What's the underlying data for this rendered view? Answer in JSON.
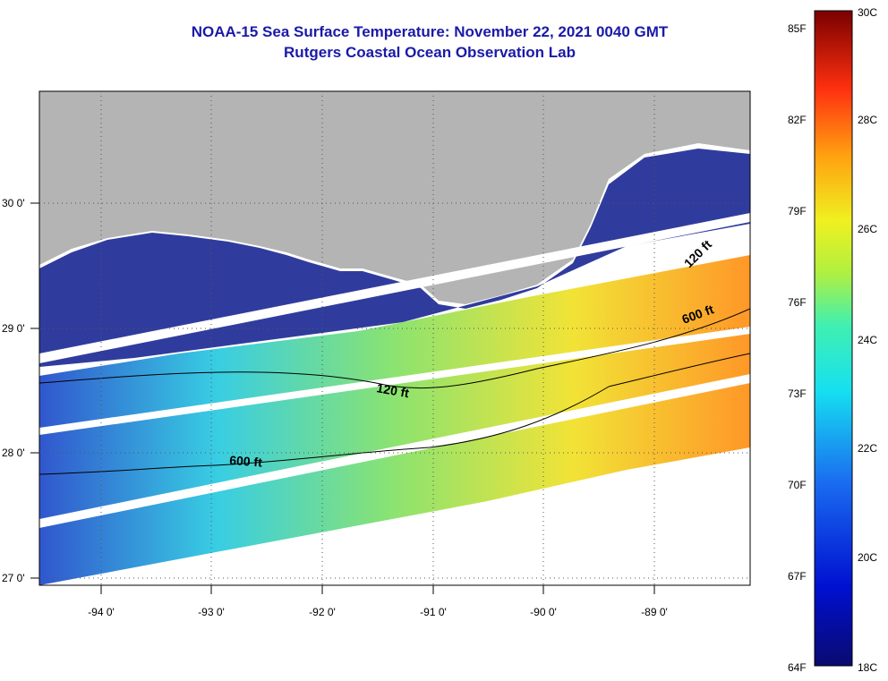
{
  "title": {
    "line1": "NOAA-15 Sea Surface Temperature:  November 22, 2021 0040 GMT",
    "line2": "Rutgers Coastal Ocean Observation Lab"
  },
  "map": {
    "lon_labels": [
      "-94 0'",
      "-93 0'",
      "-92 0'",
      "-91 0'",
      "-90 0'",
      "-89 0'"
    ],
    "lat_labels": [
      "30 0'",
      "29 0'",
      "28 0'",
      "27 0'"
    ],
    "contours": [
      "120 ft",
      "600 ft",
      "600 ft",
      "120 ft"
    ]
  },
  "colorbar": {
    "f_labels": [
      "85F",
      "82F",
      "79F",
      "76F",
      "73F",
      "70F",
      "67F",
      "64F"
    ],
    "c_labels": [
      "30C",
      "28C",
      "26C",
      "24C",
      "22C",
      "20C",
      "18C"
    ]
  },
  "colors": {
    "title": "#1a1aa8",
    "land": "#b4b4b4",
    "cold": "#0c1a8c",
    "warm": "#ff8c10"
  }
}
